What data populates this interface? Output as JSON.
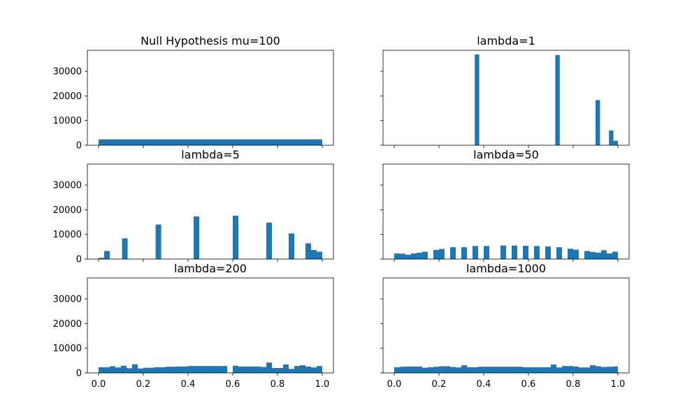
{
  "colors": {
    "bar": "#1f77b4",
    "axes": "#000000",
    "background": "#ffffff"
  },
  "chart_data": [
    {
      "type": "bar",
      "title": "Null Hypothesis mu=100",
      "xlim": [
        -0.05,
        1.05
      ],
      "ylim": [
        0,
        38500
      ],
      "xticks": [],
      "xtick_labels": [],
      "yticks": [
        0,
        10000,
        20000,
        30000
      ],
      "ytick_labels": [
        "0",
        "10000",
        "20000",
        "30000"
      ],
      "bin_width": 1.0,
      "bars": [
        {
          "x": 0.0,
          "value": 2400
        }
      ]
    },
    {
      "type": "bar",
      "title": "lambda=1",
      "xlim": [
        -0.05,
        1.05
      ],
      "ylim": [
        0,
        38500
      ],
      "xticks": [],
      "xtick_labels": [],
      "yticks": [
        0,
        10000,
        20000,
        30000
      ],
      "ytick_labels": [],
      "bin_width": 0.02,
      "bars": [
        {
          "x": 0.36,
          "value": 36800
        },
        {
          "x": 0.72,
          "value": 36600
        },
        {
          "x": 0.9,
          "value": 18300
        },
        {
          "x": 0.96,
          "value": 6000
        },
        {
          "x": 0.98,
          "value": 1800
        }
      ]
    },
    {
      "type": "bar",
      "title": "lambda=5",
      "xlim": [
        -0.05,
        1.05
      ],
      "ylim": [
        0,
        38500
      ],
      "xticks": [],
      "xtick_labels": [],
      "yticks": [
        0,
        10000,
        20000,
        30000
      ],
      "ytick_labels": [
        "0",
        "10000",
        "20000",
        "30000"
      ],
      "bin_width": 0.025,
      "bars": [
        {
          "x": 0.0,
          "value": 500
        },
        {
          "x": 0.025,
          "value": 3300
        },
        {
          "x": 0.105,
          "value": 8400
        },
        {
          "x": 0.255,
          "value": 14000
        },
        {
          "x": 0.425,
          "value": 17300
        },
        {
          "x": 0.6,
          "value": 17600
        },
        {
          "x": 0.75,
          "value": 14800
        },
        {
          "x": 0.85,
          "value": 10400
        },
        {
          "x": 0.925,
          "value": 6400
        },
        {
          "x": 0.95,
          "value": 3700
        },
        {
          "x": 0.975,
          "value": 3000
        }
      ]
    },
    {
      "type": "bar",
      "title": "lambda=50",
      "xlim": [
        -0.05,
        1.05
      ],
      "ylim": [
        0,
        38500
      ],
      "xticks": [],
      "xtick_labels": [],
      "yticks": [
        0,
        10000,
        20000,
        30000
      ],
      "ytick_labels": [],
      "bin_width": 0.025,
      "bars": [
        {
          "x": 0.0,
          "value": 2300
        },
        {
          "x": 0.025,
          "value": 2200
        },
        {
          "x": 0.05,
          "value": 1800
        },
        {
          "x": 0.075,
          "value": 2300
        },
        {
          "x": 0.1,
          "value": 2600
        },
        {
          "x": 0.125,
          "value": 3000
        },
        {
          "x": 0.175,
          "value": 3700
        },
        {
          "x": 0.2,
          "value": 4100
        },
        {
          "x": 0.25,
          "value": 4800
        },
        {
          "x": 0.3,
          "value": 4800
        },
        {
          "x": 0.35,
          "value": 5300
        },
        {
          "x": 0.4,
          "value": 5300
        },
        {
          "x": 0.475,
          "value": 5500
        },
        {
          "x": 0.525,
          "value": 5500
        },
        {
          "x": 0.575,
          "value": 5400
        },
        {
          "x": 0.625,
          "value": 5300
        },
        {
          "x": 0.675,
          "value": 5100
        },
        {
          "x": 0.725,
          "value": 4800
        },
        {
          "x": 0.775,
          "value": 4200
        },
        {
          "x": 0.8,
          "value": 3800
        },
        {
          "x": 0.85,
          "value": 3300
        },
        {
          "x": 0.875,
          "value": 2900
        },
        {
          "x": 0.9,
          "value": 2600
        },
        {
          "x": 0.925,
          "value": 3600
        },
        {
          "x": 0.95,
          "value": 2300
        },
        {
          "x": 0.975,
          "value": 3000
        }
      ]
    },
    {
      "type": "bar",
      "title": "lambda=200",
      "xlim": [
        -0.05,
        1.05
      ],
      "ylim": [
        0,
        38500
      ],
      "xticks": [
        0.0,
        0.2,
        0.4,
        0.6,
        0.8,
        1.0
      ],
      "xtick_labels": [
        "0.0",
        "0.2",
        "0.4",
        "0.6",
        "0.8",
        "1.0"
      ],
      "yticks": [
        0,
        10000,
        20000,
        30000
      ],
      "ytick_labels": [
        "0",
        "10000",
        "20000",
        "30000"
      ],
      "bin_width": 0.025,
      "bars": [
        {
          "x": 0.0,
          "value": 2300
        },
        {
          "x": 0.025,
          "value": 2300
        },
        {
          "x": 0.05,
          "value": 2700
        },
        {
          "x": 0.075,
          "value": 2200
        },
        {
          "x": 0.1,
          "value": 2900
        },
        {
          "x": 0.125,
          "value": 1900
        },
        {
          "x": 0.15,
          "value": 3500
        },
        {
          "x": 0.175,
          "value": 1800
        },
        {
          "x": 0.2,
          "value": 2100
        },
        {
          "x": 0.225,
          "value": 2100
        },
        {
          "x": 0.25,
          "value": 2300
        },
        {
          "x": 0.275,
          "value": 2300
        },
        {
          "x": 0.3,
          "value": 2500
        },
        {
          "x": 0.325,
          "value": 2500
        },
        {
          "x": 0.35,
          "value": 2600
        },
        {
          "x": 0.375,
          "value": 2600
        },
        {
          "x": 0.4,
          "value": 2800
        },
        {
          "x": 0.425,
          "value": 2800
        },
        {
          "x": 0.45,
          "value": 2800
        },
        {
          "x": 0.475,
          "value": 2800
        },
        {
          "x": 0.5,
          "value": 2800
        },
        {
          "x": 0.525,
          "value": 2800
        },
        {
          "x": 0.55,
          "value": 2800
        },
        {
          "x": 0.6,
          "value": 2900
        },
        {
          "x": 0.625,
          "value": 2600
        },
        {
          "x": 0.65,
          "value": 2600
        },
        {
          "x": 0.675,
          "value": 2600
        },
        {
          "x": 0.7,
          "value": 2600
        },
        {
          "x": 0.725,
          "value": 2400
        },
        {
          "x": 0.75,
          "value": 4200
        },
        {
          "x": 0.775,
          "value": 2000
        },
        {
          "x": 0.8,
          "value": 2000
        },
        {
          "x": 0.825,
          "value": 3400
        },
        {
          "x": 0.85,
          "value": 1600
        },
        {
          "x": 0.875,
          "value": 2800
        },
        {
          "x": 0.9,
          "value": 3100
        },
        {
          "x": 0.925,
          "value": 2600
        },
        {
          "x": 0.95,
          "value": 2200
        },
        {
          "x": 0.975,
          "value": 2800
        }
      ]
    },
    {
      "type": "bar",
      "title": "lambda=1000",
      "xlim": [
        -0.05,
        1.05
      ],
      "ylim": [
        0,
        38500
      ],
      "xticks": [
        0.0,
        0.2,
        0.4,
        0.6,
        0.8,
        1.0
      ],
      "xtick_labels": [
        "0.0",
        "0.2",
        "0.4",
        "0.6",
        "0.8",
        "1.0"
      ],
      "yticks": [
        0,
        10000,
        20000,
        30000
      ],
      "ytick_labels": [],
      "bin_width": 0.025,
      "bars": [
        {
          "x": 0.0,
          "value": 2300
        },
        {
          "x": 0.025,
          "value": 2500
        },
        {
          "x": 0.05,
          "value": 2600
        },
        {
          "x": 0.075,
          "value": 2600
        },
        {
          "x": 0.1,
          "value": 2600
        },
        {
          "x": 0.125,
          "value": 2100
        },
        {
          "x": 0.15,
          "value": 2300
        },
        {
          "x": 0.175,
          "value": 2500
        },
        {
          "x": 0.2,
          "value": 2700
        },
        {
          "x": 0.225,
          "value": 2700
        },
        {
          "x": 0.25,
          "value": 2400
        },
        {
          "x": 0.275,
          "value": 2200
        },
        {
          "x": 0.3,
          "value": 3100
        },
        {
          "x": 0.325,
          "value": 2300
        },
        {
          "x": 0.35,
          "value": 2300
        },
        {
          "x": 0.375,
          "value": 2500
        },
        {
          "x": 0.4,
          "value": 2500
        },
        {
          "x": 0.425,
          "value": 2500
        },
        {
          "x": 0.45,
          "value": 2500
        },
        {
          "x": 0.475,
          "value": 2500
        },
        {
          "x": 0.5,
          "value": 2500
        },
        {
          "x": 0.525,
          "value": 2500
        },
        {
          "x": 0.55,
          "value": 2500
        },
        {
          "x": 0.575,
          "value": 2300
        },
        {
          "x": 0.6,
          "value": 2300
        },
        {
          "x": 0.625,
          "value": 2300
        },
        {
          "x": 0.65,
          "value": 2300
        },
        {
          "x": 0.675,
          "value": 2300
        },
        {
          "x": 0.7,
          "value": 3400
        },
        {
          "x": 0.725,
          "value": 2200
        },
        {
          "x": 0.75,
          "value": 2800
        },
        {
          "x": 0.775,
          "value": 2800
        },
        {
          "x": 0.8,
          "value": 2600
        },
        {
          "x": 0.825,
          "value": 2200
        },
        {
          "x": 0.85,
          "value": 2200
        },
        {
          "x": 0.875,
          "value": 3100
        },
        {
          "x": 0.9,
          "value": 2700
        },
        {
          "x": 0.925,
          "value": 2400
        },
        {
          "x": 0.95,
          "value": 2500
        },
        {
          "x": 0.975,
          "value": 2600
        }
      ]
    }
  ]
}
